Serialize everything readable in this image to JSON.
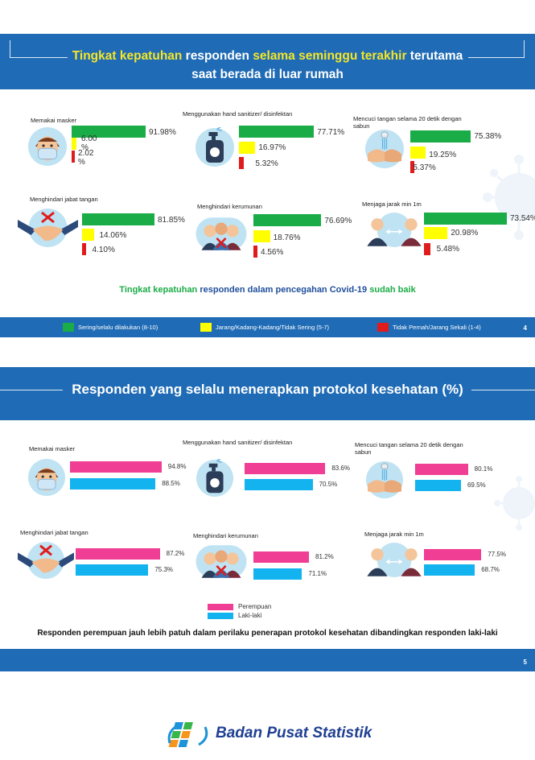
{
  "legend_colors": {
    "green": "#1aac47",
    "yellow": "#ffff00",
    "red": "#e01b1b",
    "pink": "#f03e94",
    "blue": "#12b3ee"
  },
  "slide1": {
    "title_parts": [
      {
        "text": "Tingkat kepatuhan",
        "highlight": true
      },
      {
        "text": " responden ",
        "highlight": false
      },
      {
        "text": "selama seminggu terakhir",
        "highlight": true
      },
      {
        "text": " terutama saat berada di  luar rumah",
        "highlight": false
      }
    ],
    "summary_parts": [
      {
        "text": "Tingkat kepatuhan",
        "color": "green"
      },
      {
        "text": " responden dalam pencegahan Covid-19 ",
        "color": "dark"
      },
      {
        "text": "sudah baik",
        "color": "green"
      }
    ],
    "legend": [
      "Sering/selalu dilakukan (8-10)",
      "Jarang/Kadang-Kadang/Tidak Sering (5-7)",
      "Tidak Pernah/Jarang Sekali (1-4)"
    ],
    "page_number": "4"
  },
  "slide2": {
    "title": "Responden yang selalu menerapkan protokol kesehatan (%)",
    "legend": [
      "Perempuan",
      "Laki-laki"
    ],
    "summary": "Responden perempuan  jauh lebih patuh dalam perilaku penerapan protokol kesehatan dibandingkan responden laki-laki",
    "page_number": "5"
  },
  "footer": {
    "org": "Badan Pusat Statistik"
  },
  "chart_data": [
    {
      "type": "bar",
      "title": "Tingkat kepatuhan responden selama seminggu terakhir terutama saat berada di  luar rumah",
      "panels": [
        {
          "label": "Memakai masker",
          "icon": "mask-face-icon",
          "categories": [
            "Sering/selalu dilakukan (8-10)",
            "Jarang/Kadang-Kadang/Tidak Sering (5-7)",
            "Tidak Pernah/Jarang Sekali (1-4)"
          ],
          "values": [
            91.98,
            6.0,
            2.02
          ],
          "labels": [
            "91.98%",
            "6.00 %",
            "2.02 %"
          ]
        },
        {
          "label": "Menggunakan hand sanitizer/ disinfektan",
          "icon": "hand-sanitizer-icon",
          "values": [
            77.71,
            16.97,
            5.32
          ],
          "labels": [
            "77.71%",
            "16.97%",
            "5.32%"
          ]
        },
        {
          "label": "Mencuci tangan selama 20 detik dengan sabun",
          "icon": "hand-wash-icon",
          "values": [
            75.38,
            19.25,
            5.37
          ],
          "labels": [
            "75.38%",
            "19.25%",
            "5.37%"
          ]
        },
        {
          "label": "Menghindari jabat tangan",
          "icon": "no-handshake-icon",
          "values": [
            81.85,
            14.06,
            4.1
          ],
          "labels": [
            "81.85%",
            "14.06%",
            "4.10%"
          ]
        },
        {
          "label": "Menghindari kerumunan",
          "icon": "crowd-icon",
          "values": [
            76.69,
            18.76,
            4.56
          ],
          "labels": [
            "76.69%",
            "18.76%",
            "4.56%"
          ]
        },
        {
          "label": "Menjaga jarak min 1m",
          "icon": "distance-icon",
          "values": [
            73.54,
            20.98,
            5.48
          ],
          "labels": [
            "73.54%",
            "20.98%",
            "5.48%"
          ]
        }
      ]
    },
    {
      "type": "bar",
      "title": "Responden yang selalu menerapkan protokol kesehatan (%)",
      "series_names": [
        "Perempuan",
        "Laki-laki"
      ],
      "panels": [
        {
          "label": "Memakai masker",
          "icon": "mask-face-icon",
          "values": [
            94.8,
            88.5
          ],
          "labels": [
            "94.8%",
            "88.5%"
          ]
        },
        {
          "label": "Menggunakan hand sanitizer/ disinfektan",
          "icon": "hand-sanitizer-icon",
          "values": [
            83.6,
            70.5
          ],
          "labels": [
            "83.6%",
            "70.5%"
          ]
        },
        {
          "label": "Mencuci tangan selama 20 detik dengan sabun",
          "icon": "hand-wash-icon",
          "values": [
            80.1,
            69.5
          ],
          "labels": [
            "80.1%",
            "69.5%"
          ]
        },
        {
          "label": "Menghindari jabat tangan",
          "icon": "no-handshake-icon",
          "values": [
            87.2,
            75.3
          ],
          "labels": [
            "87.2%",
            "75.3%"
          ]
        },
        {
          "label": "Menghindari kerumunan",
          "icon": "crowd-icon",
          "values": [
            81.2,
            71.1
          ],
          "labels": [
            "81.2%",
            "71.1%"
          ]
        },
        {
          "label": "Menjaga jarak min 1m",
          "icon": "distance-icon",
          "values": [
            77.5,
            68.7
          ],
          "labels": [
            "77.5%",
            "68.7%"
          ]
        }
      ]
    }
  ]
}
